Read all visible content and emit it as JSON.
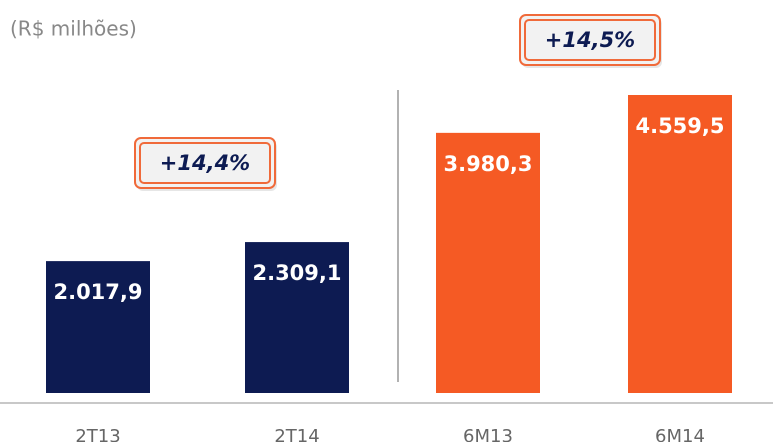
{
  "chart_data": {
    "type": "bar",
    "subtitle": "(R$ milhões)",
    "categories": [
      "2T13",
      "2T14",
      "6M13",
      "6M14"
    ],
    "values": [
      2017.9,
      2309.1,
      3980.3,
      4559.5
    ],
    "value_labels": [
      "2.017,9",
      "2.309,1",
      "3.980,3",
      "4.559,5"
    ],
    "colors": [
      "#0d1b52",
      "#0d1b52",
      "#f55a24",
      "#f55a24"
    ],
    "annotations": [
      "+14,4%",
      "+14,5%"
    ]
  }
}
